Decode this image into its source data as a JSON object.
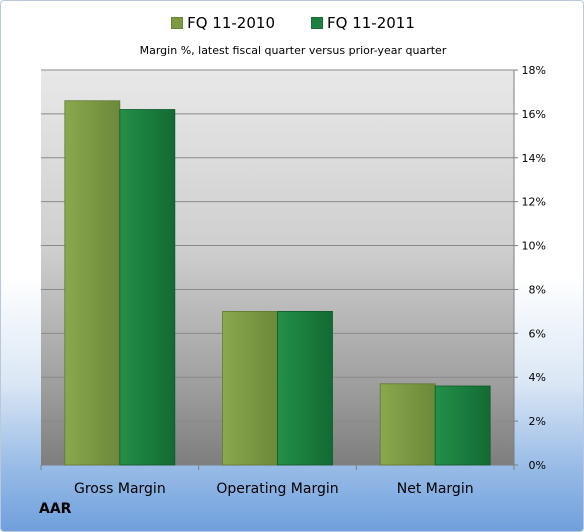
{
  "legend": [
    {
      "label": "FQ 11-2010",
      "color": "#7d9a43"
    },
    {
      "label": "FQ 11-2011",
      "color": "#1c7f40"
    }
  ],
  "subtitle": "Margin %,  latest fiscal quarter versus prior-year quarter",
  "company": "AAR",
  "chart_data": {
    "type": "bar",
    "categories": [
      "Gross Margin",
      "Operating Margin",
      "Net Margin"
    ],
    "series": [
      {
        "name": "FQ 11-2010",
        "values": [
          16.6,
          7.0,
          3.7
        ]
      },
      {
        "name": "FQ 11-2011",
        "values": [
          16.2,
          7.0,
          3.6
        ]
      }
    ],
    "ylim": [
      0,
      18
    ],
    "yticks": [
      0,
      2,
      4,
      6,
      8,
      10,
      12,
      14,
      16,
      18
    ],
    "ytick_labels": [
      "0%",
      "2%",
      "4%",
      "6%",
      "8%",
      "10%",
      "12%",
      "14%",
      "16%",
      "18%"
    ],
    "y_axis_side": "right",
    "grid": true,
    "legend_position": "top",
    "title": "Margin %,  latest fiscal quarter versus prior-year quarter"
  }
}
